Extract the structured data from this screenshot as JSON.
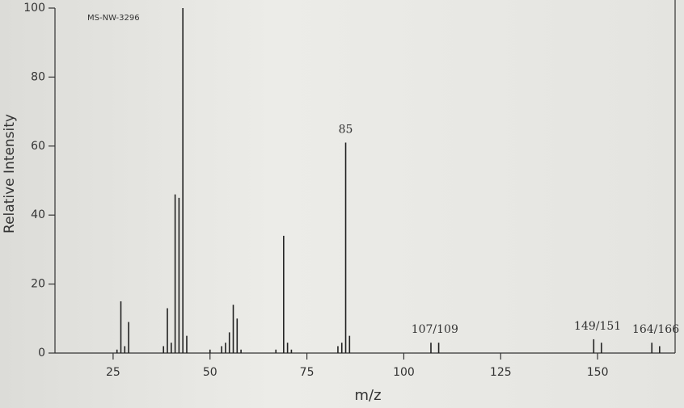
{
  "chart_data": {
    "type": "bar",
    "title": "MS-NW-3296",
    "x_label": "m/z",
    "y_label": "Relative Intensity",
    "x": [
      26,
      27,
      28,
      29,
      38,
      39,
      40,
      41,
      42,
      43,
      44,
      50,
      53,
      54,
      55,
      56,
      57,
      58,
      67,
      69,
      70,
      71,
      83,
      84,
      85,
      86,
      107,
      109,
      149,
      151,
      164,
      166
    ],
    "values": [
      1,
      15,
      2,
      9,
      2,
      13,
      3,
      46,
      45,
      100,
      5,
      1,
      2,
      3,
      6,
      14,
      10,
      1,
      1,
      34,
      3,
      1,
      2,
      3,
      61,
      5,
      3,
      3,
      4,
      3,
      3,
      2
    ],
    "color": "#222222",
    "xlim": [
      10,
      170
    ],
    "xticks": [
      25,
      50,
      75,
      100,
      125,
      150
    ],
    "ylim": [
      0,
      100
    ],
    "yticks": [
      0,
      20,
      40,
      60,
      80,
      100
    ],
    "annotations": [
      {
        "text": "85",
        "x": 85,
        "y": 61
      },
      {
        "text": "107/109",
        "x": 108,
        "y": 3
      },
      {
        "text": "149/151",
        "x": 150,
        "y": 4
      },
      {
        "text": "164/166",
        "x": 165,
        "y": 3
      }
    ]
  }
}
